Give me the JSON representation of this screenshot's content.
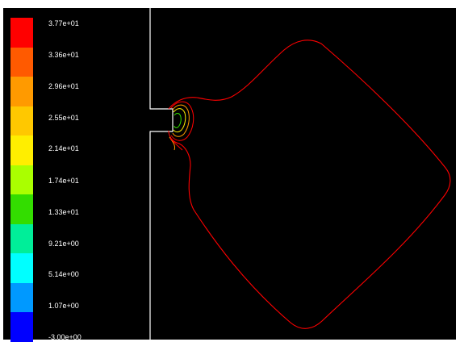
{
  "chart_data": {
    "type": "contour",
    "colorbar": {
      "labels": [
        "3.77e+01",
        "3.36e+01",
        "2.96e+01",
        "2.55e+01",
        "2.14e+01",
        "1.74e+01",
        "1.33e+01",
        "9.21e+00",
        "5.14e+00",
        "1.07e+00",
        "-3.00e+00"
      ],
      "colors": [
        "#ff0000",
        "#ff5a00",
        "#ff9a00",
        "#ffc800",
        "#ffee00",
        "#aaff00",
        "#33dd00",
        "#00ee99",
        "#00ffff",
        "#0099ff",
        "#0000ff"
      ],
      "min": -3.0,
      "max": 37.7
    },
    "levels": [
      -3.0,
      1.07,
      5.14,
      9.21,
      13.3,
      17.4,
      21.4,
      25.5,
      29.6,
      33.6,
      37.7
    ],
    "contour_colors": {
      "outer": "#ff0000",
      "mid": "#ff9a00",
      "inner": "#ffee00",
      "core": "#33dd00"
    },
    "background": "#000000",
    "geometry_line_color": "#ffffff"
  }
}
